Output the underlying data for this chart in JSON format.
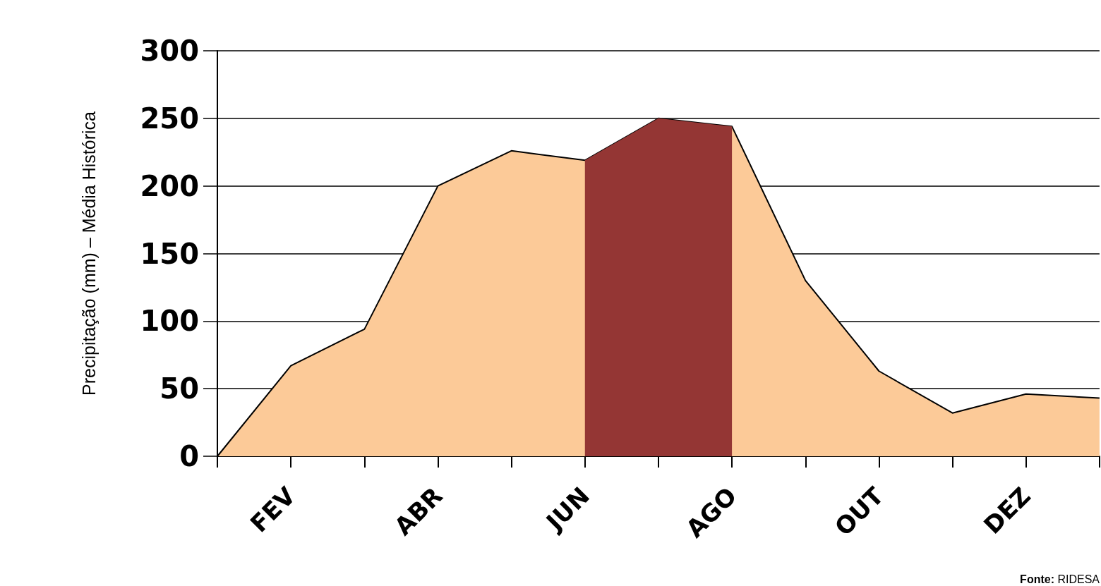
{
  "chart_data": {
    "type": "area",
    "ylabel": "Precipitação (mm) – Média Histórica",
    "categories": [
      null,
      "FEV",
      null,
      "ABR",
      null,
      "JUN",
      null,
      "AGO",
      null,
      "OUT",
      null,
      "DEZ",
      null
    ],
    "series": [
      {
        "color": "#fcca98",
        "line_style": "solid",
        "values": [
          0,
          67,
          94,
          200,
          226,
          219,
          250,
          244,
          130,
          63,
          32,
          46,
          43
        ]
      },
      {
        "color": "#943634",
        "values": [
          null,
          null,
          null,
          null,
          null,
          219,
          250,
          244,
          null,
          null,
          null,
          null,
          null
        ]
      }
    ],
    "ylim": [
      0,
      300
    ],
    "yticks": [
      0,
      50,
      100,
      150,
      200,
      250,
      300
    ],
    "grid": "y",
    "marker": "none",
    "annotations": [
      "Fonte: RIDESA"
    ]
  }
}
